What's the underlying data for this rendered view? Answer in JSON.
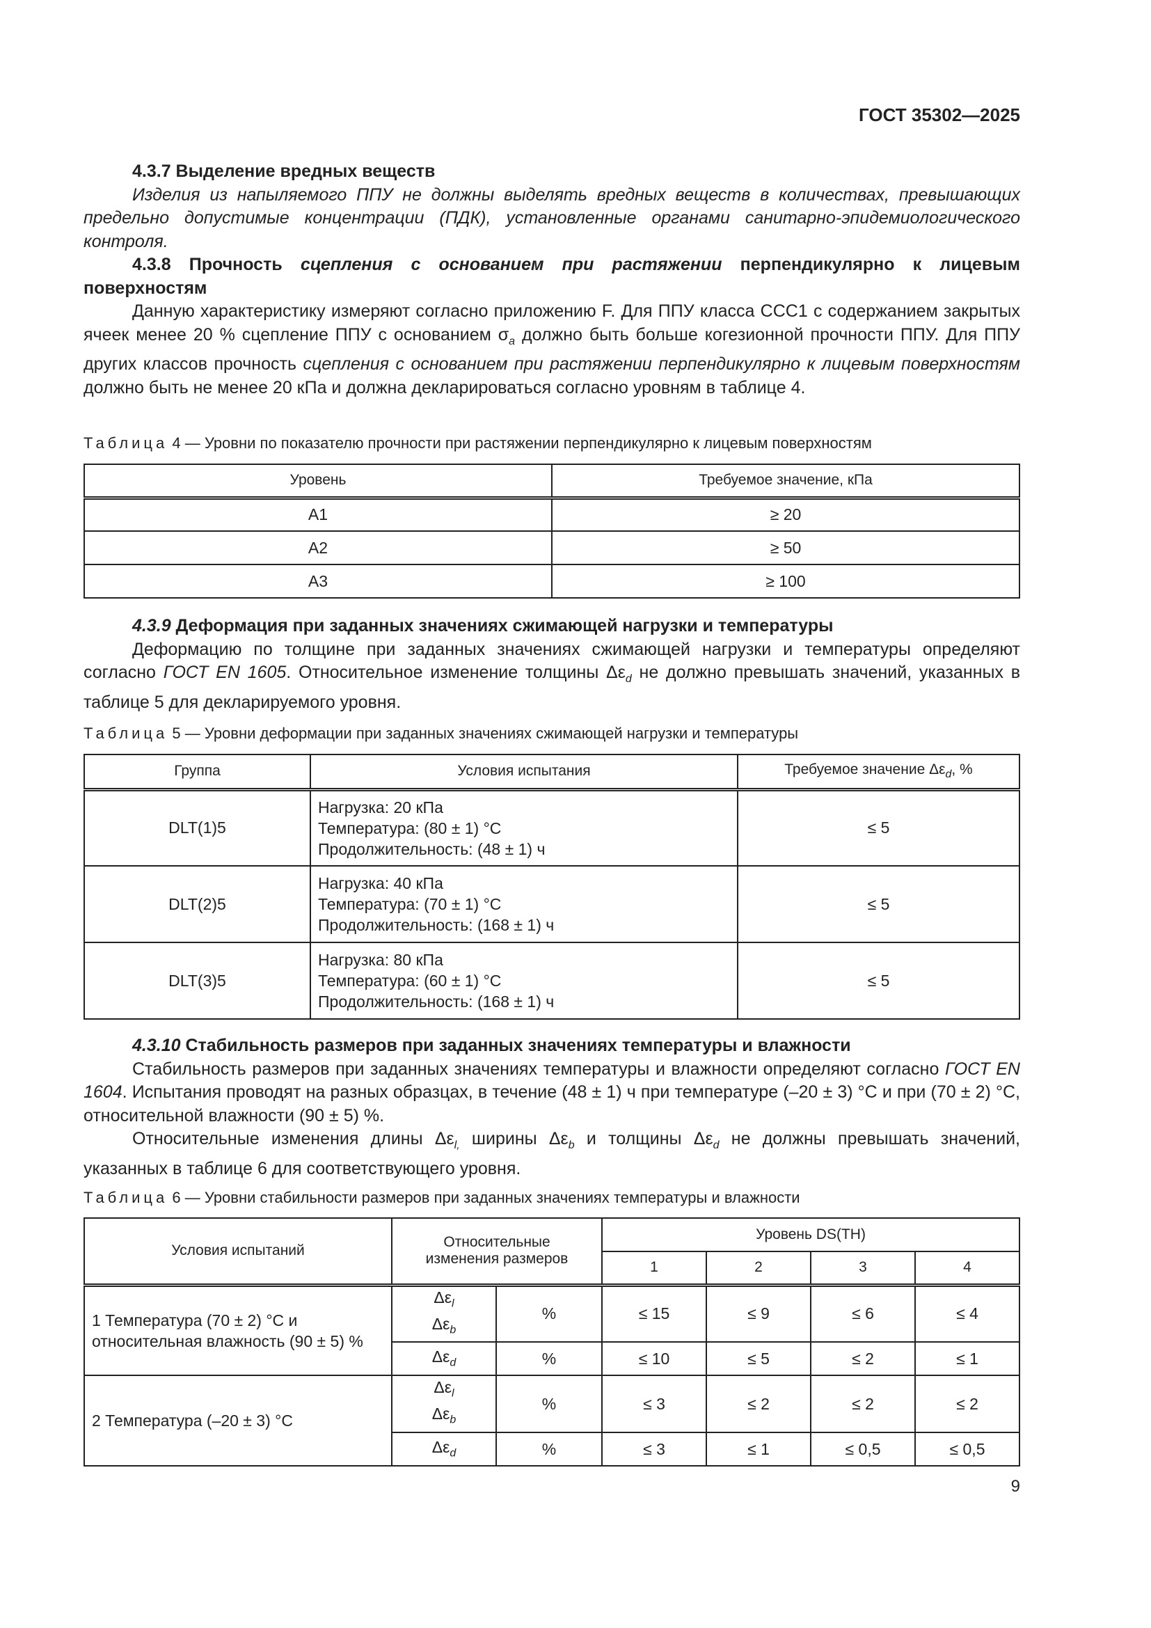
{
  "header": {
    "doc_id": "ГОСТ 35302—2025"
  },
  "s437": {
    "heading": "4.3.7 Выделение вредных веществ",
    "text": "Изделия из напыляемого ППУ не должны выделять вредных веществ в количествах, превышающих предельно допустимые концентрации (ПДК), установленные органами санитарно-эпидемиологического контроля."
  },
  "s438": {
    "heading_a": "4.3.8 Прочность ",
    "heading_b": "сцепления с основанием при растяжении",
    "heading_c": " перпендикулярно к лицевым поверхностям",
    "p_a": "Данную характеристику измеряют согласно приложению F. Для ППУ класса ССС1 с содержанием закрытых ячеек менее 20 % сцепление ППУ с основанием σ",
    "p_sub": "a",
    "p_b": " должно быть больше когезионной прочности ППУ. Для ППУ других классов прочность ",
    "p_c": "сцепления с основанием при растяжении перпендикулярно к лицевым поверхностям",
    "p_d": " должно быть не менее 20 кПа и должна декларироваться согласно уровням в таблице 4."
  },
  "table4": {
    "caption_label": "Таблица",
    "caption": " 4 — Уровни по показателю прочности при растяжении перпендикулярно к лицевым поверхностям",
    "headers": [
      "Уровень",
      "Требуемое значение, кПа"
    ],
    "rows": [
      [
        "A1",
        "≥ 20"
      ],
      [
        "A2",
        "≥ 50"
      ],
      [
        "A3",
        "≥ 100"
      ]
    ]
  },
  "s439": {
    "heading_a": "4.3.9",
    "heading_b": " Деформация при заданных значениях сжимающей нагрузки и температуры",
    "p_a": "Деформацию по толщине при заданных значениях сжимающей нагрузки и температуры определяют согласно ",
    "p_ref": "ГОСТ EN 1605",
    "p_b": ". Относительное изменение толщины Δε",
    "p_sub": "d",
    "p_c": " не должно превышать значений, указанных в таблице 5 для декларируемого уровня."
  },
  "table5": {
    "caption_label": "Таблица",
    "caption": " 5 — Уровни деформации при заданных значениях сжимающей нагрузки и температуры",
    "headers": [
      "Группа",
      "Условия испытания",
      "Требуемое значение Δε",
      "d",
      ", %"
    ],
    "rows": [
      {
        "group": "DLT(1)5",
        "load": "Нагрузка: 20 кПа",
        "temp": "Температура: (80 ± 1) °C",
        "dur": "Продолжительность: (48 ± 1) ч",
        "value": "≤ 5"
      },
      {
        "group": "DLT(2)5",
        "load": "Нагрузка: 40 кПа",
        "temp": "Температура: (70 ± 1) °C",
        "dur": "Продолжительность: (168 ± 1) ч",
        "value": "≤ 5"
      },
      {
        "group": "DLT(3)5",
        "load": "Нагрузка: 80 кПа",
        "temp": "Температура: (60 ± 1) °C",
        "dur": "Продолжительность: (168 ± 1) ч",
        "value": "≤ 5"
      }
    ]
  },
  "s4310": {
    "heading_a": "4.3.10",
    "heading_b": " Стабильность размеров при заданных значениях температуры и влажности",
    "p1_a": "Стабильность размеров при заданных значениях температуры и влажности определяют согласно ",
    "p1_ref": "ГОСТ EN 1604",
    "p1_b": ". Испытания проводят на разных образцах, в течение (48 ± 1) ч при температуре (–20 ± 3) °C и при (70 ± 2) °C, относительной влажности (90 ± 5) %.",
    "p2_a": "Относительные изменения длины Δε",
    "p2_sl": "l,",
    "p2_b": " ширины Δε",
    "p2_sb": "b",
    "p2_c": " и толщины Δε",
    "p2_sd": "d",
    "p2_d": " не должны превышать значений, указанных в таблице 6 для соответствующего уровня."
  },
  "table6": {
    "caption_label": "Таблица",
    "caption": " 6 — Уровни стабильности размеров при заданных значениях температуры и влажности",
    "h_cond": "Условия испытаний",
    "h_rel": "Относительные изменения размеров",
    "h_level": "Уровень DS(TH)",
    "levels": [
      "1",
      "2",
      "3",
      "4"
    ],
    "delta": "Δε",
    "sub_l": "l",
    "sub_b": "b",
    "sub_d": "d",
    "unit": "%",
    "cond1": "1 Температура (70 ± 2) °C и относительная влажность (90 ± 5) %",
    "cond2": "2 Температура (–20 ± 3) °C",
    "r1a": [
      "≤ 15",
      "≤ 9",
      "≤ 6",
      "≤ 4"
    ],
    "r1b": [
      "≤ 10",
      "≤ 5",
      "≤ 2",
      "≤ 1"
    ],
    "r2a": [
      "≤ 3",
      "≤ 2",
      "≤ 2",
      "≤ 2"
    ],
    "r2b": [
      "≤ 3",
      "≤ 1",
      "≤ 0,5",
      "≤ 0,5"
    ]
  },
  "footer": {
    "page_number": "9"
  }
}
